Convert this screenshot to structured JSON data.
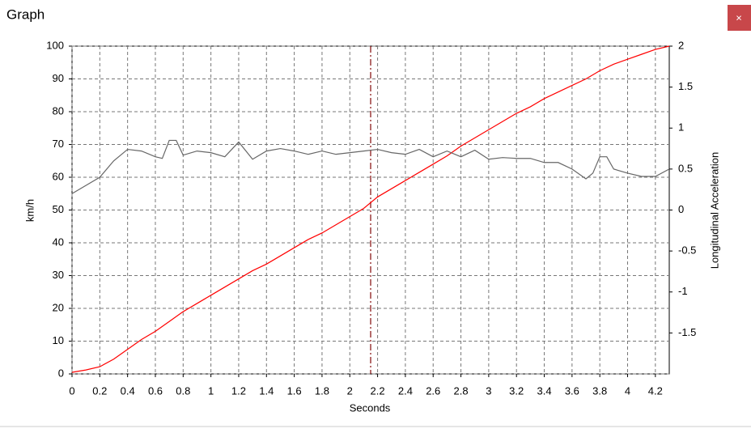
{
  "window": {
    "title": "Graph",
    "close": "×"
  },
  "chart_data": {
    "type": "line",
    "xlabel": "Seconds",
    "ylabel": "km/h",
    "y2label": "Longitudinal Acceleration",
    "xlim": [
      0,
      4.3
    ],
    "xticks": [
      0,
      0.2,
      0.4,
      0.6,
      0.8,
      1,
      1.2,
      1.4,
      1.6,
      1.8,
      2,
      2.2,
      2.4,
      2.6,
      2.8,
      3,
      3.2,
      3.4,
      3.6,
      3.8,
      4,
      4.2
    ],
    "ylim": [
      0,
      100
    ],
    "yticks": [
      0,
      10,
      20,
      30,
      40,
      50,
      60,
      70,
      80,
      90,
      100
    ],
    "y2lim": [
      -2,
      2
    ],
    "y2ticks": [
      -1.5,
      -1,
      -0.5,
      0,
      0.5,
      1,
      1.5,
      2
    ],
    "grid": true,
    "cursor_x": 2.15,
    "cursor_color": "#8b1a1a",
    "series": [
      {
        "color": "#ff0000",
        "x": [
          0,
          0.1,
          0.2,
          0.3,
          0.4,
          0.5,
          0.6,
          0.7,
          0.8,
          0.9,
          1,
          1.1,
          1.2,
          1.3,
          1.4,
          1.5,
          1.6,
          1.7,
          1.8,
          1.9,
          2,
          2.1,
          2.2,
          2.3,
          2.4,
          2.5,
          2.6,
          2.7,
          2.8,
          2.9,
          3,
          3.1,
          3.2,
          3.3,
          3.4,
          3.5,
          3.6,
          3.7,
          3.8,
          3.9,
          4,
          4.1,
          4.2,
          4.3
        ],
        "values": [
          0.5,
          1.2,
          2.2,
          4.5,
          7.5,
          10.5,
          13,
          16,
          19,
          21.5,
          24,
          26.5,
          29,
          31.5,
          33.5,
          36,
          38.5,
          41,
          43,
          45.5,
          48,
          50.5,
          54,
          56.5,
          59,
          61.5,
          64,
          66.5,
          69.5,
          72,
          74.5,
          77,
          79.5,
          81.5,
          84,
          86,
          88,
          90,
          92.5,
          94.5,
          96,
          97.5,
          99,
          100
        ]
      },
      {
        "color": "#666666",
        "axis": "y2",
        "x": [
          0,
          0.1,
          0.2,
          0.3,
          0.4,
          0.5,
          0.6,
          0.65,
          0.7,
          0.75,
          0.8,
          0.9,
          1,
          1.1,
          1.2,
          1.3,
          1.4,
          1.5,
          1.6,
          1.7,
          1.8,
          1.9,
          2,
          2.1,
          2.2,
          2.3,
          2.4,
          2.5,
          2.6,
          2.7,
          2.8,
          2.9,
          3,
          3.1,
          3.2,
          3.3,
          3.4,
          3.5,
          3.6,
          3.7,
          3.75,
          3.8,
          3.85,
          3.9,
          4,
          4.1,
          4.2,
          4.3
        ],
        "values": [
          0.2,
          0.3,
          0.4,
          0.6,
          0.74,
          0.72,
          0.65,
          0.63,
          0.85,
          0.85,
          0.67,
          0.72,
          0.7,
          0.65,
          0.83,
          0.62,
          0.72,
          0.75,
          0.72,
          0.68,
          0.72,
          0.68,
          0.7,
          0.72,
          0.74,
          0.7,
          0.68,
          0.74,
          0.65,
          0.72,
          0.65,
          0.73,
          0.62,
          0.64,
          0.63,
          0.63,
          0.58,
          0.58,
          0.5,
          0.38,
          0.45,
          0.65,
          0.65,
          0.5,
          0.45,
          0.41,
          0.41,
          0.5
        ]
      }
    ]
  }
}
